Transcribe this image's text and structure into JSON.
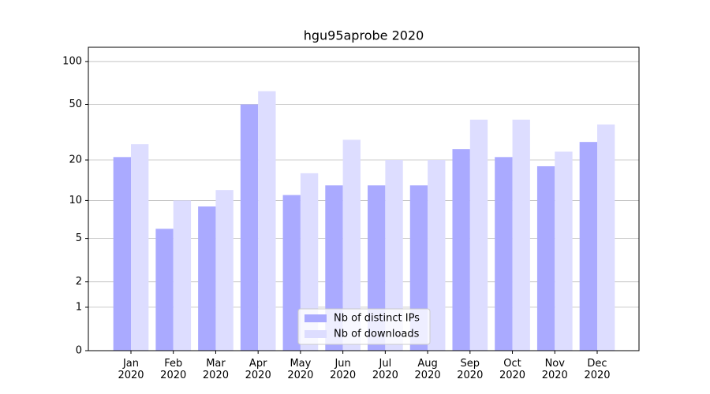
{
  "chart_data": {
    "type": "bar",
    "title": "hgu95aprobe 2020",
    "categories": [
      "Jan\n2020",
      "Feb\n2020",
      "Mar\n2020",
      "Apr\n2020",
      "May\n2020",
      "Jun\n2020",
      "Jul\n2020",
      "Aug\n2020",
      "Sep\n2020",
      "Oct\n2020",
      "Nov\n2020",
      "Dec\n2020"
    ],
    "series": [
      {
        "name": "Nb of distinct IPs",
        "color": "#aaaaff",
        "values": [
          21,
          6,
          9,
          50,
          11,
          13,
          13,
          13,
          24,
          21,
          18,
          27
        ]
      },
      {
        "name": "Nb of downloads",
        "color": "#ddddff",
        "values": [
          26,
          10,
          12,
          62,
          16,
          28,
          20,
          20,
          39,
          39,
          23,
          36
        ]
      }
    ],
    "y_scale": "log1p",
    "ylim": [
      0,
      126
    ],
    "yticks": [
      0,
      1,
      2,
      5,
      10,
      20,
      50,
      100
    ],
    "grid": true,
    "legend": "lower center"
  }
}
